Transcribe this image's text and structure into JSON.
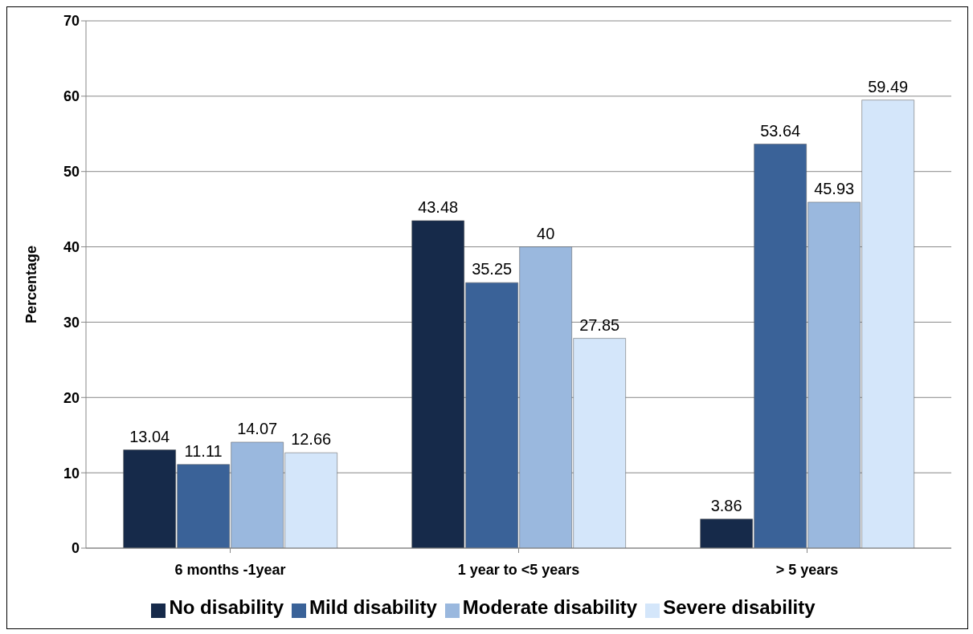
{
  "chart_data": {
    "type": "bar",
    "ylabel": "Percentage",
    "categories": [
      "6 months -1year",
      "1 year to <5 years",
      "> 5 years"
    ],
    "series": [
      {
        "name": "No disability",
        "color": "#162a4a",
        "values": [
          13.04,
          43.48,
          3.86
        ]
      },
      {
        "name": "Mild disability",
        "color": "#3a6298",
        "values": [
          11.11,
          35.25,
          53.64
        ]
      },
      {
        "name": "Moderate disability",
        "color": "#9ab8de",
        "values": [
          14.07,
          40,
          45.93
        ]
      },
      {
        "name": "Severe disability",
        "color": "#d4e6fa",
        "values": [
          12.66,
          27.85,
          59.49
        ]
      }
    ],
    "ylim": [
      0,
      70
    ],
    "yticks": [
      0,
      10,
      20,
      30,
      40,
      50,
      60,
      70
    ],
    "grid": "y",
    "legend": "bottom",
    "data_labels": true
  }
}
